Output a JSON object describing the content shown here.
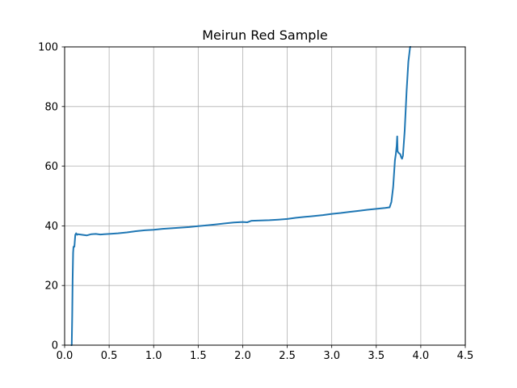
{
  "chart_data": {
    "type": "line",
    "title": "Meirun Red Sample",
    "xlabel": "",
    "ylabel": "",
    "xlim": [
      0,
      4.5
    ],
    "ylim": [
      0,
      100
    ],
    "xticks": [
      "0.0",
      "0.5",
      "1.0",
      "1.5",
      "2.0",
      "2.5",
      "3.0",
      "3.5",
      "4.0",
      "4.5"
    ],
    "yticks": [
      "0",
      "20",
      "40",
      "60",
      "80",
      "100"
    ],
    "grid": true,
    "legend": "none",
    "series": [
      {
        "color": "#1f77b4",
        "x": [
          0.07,
          0.08,
          0.085,
          0.09,
          0.095,
          0.1,
          0.11,
          0.12,
          0.13,
          0.14,
          0.15,
          0.2,
          0.25,
          0.3,
          0.35,
          0.4,
          0.5,
          0.6,
          0.7,
          0.8,
          0.9,
          1.0,
          1.1,
          1.2,
          1.3,
          1.4,
          1.5,
          1.6,
          1.7,
          1.8,
          1.9,
          2.0,
          2.05,
          2.1,
          2.2,
          2.3,
          2.4,
          2.5,
          2.6,
          2.7,
          2.8,
          2.9,
          3.0,
          3.1,
          3.2,
          3.3,
          3.4,
          3.5,
          3.6,
          3.65,
          3.67,
          3.69,
          3.71,
          3.72,
          3.73,
          3.735,
          3.74,
          3.75,
          3.77,
          3.78,
          3.79,
          3.8,
          3.82,
          3.84,
          3.86,
          3.88,
          3.89
        ],
        "y": [
          0,
          0,
          10,
          22,
          31,
          33,
          33,
          37,
          37.5,
          37,
          37.2,
          37,
          36.8,
          37.2,
          37.3,
          37.1,
          37.3,
          37.5,
          37.8,
          38.2,
          38.5,
          38.7,
          39,
          39.2,
          39.4,
          39.6,
          39.9,
          40.2,
          40.5,
          40.8,
          41.1,
          41.3,
          41.2,
          41.7,
          41.8,
          41.9,
          42.1,
          42.3,
          42.7,
          43,
          43.3,
          43.6,
          44,
          44.3,
          44.7,
          45,
          45.4,
          45.7,
          46,
          46.2,
          48,
          53,
          62,
          64,
          67,
          70,
          65,
          64.5,
          64,
          63,
          62.5,
          63.5,
          72,
          85,
          95,
          100,
          100
        ]
      }
    ]
  }
}
